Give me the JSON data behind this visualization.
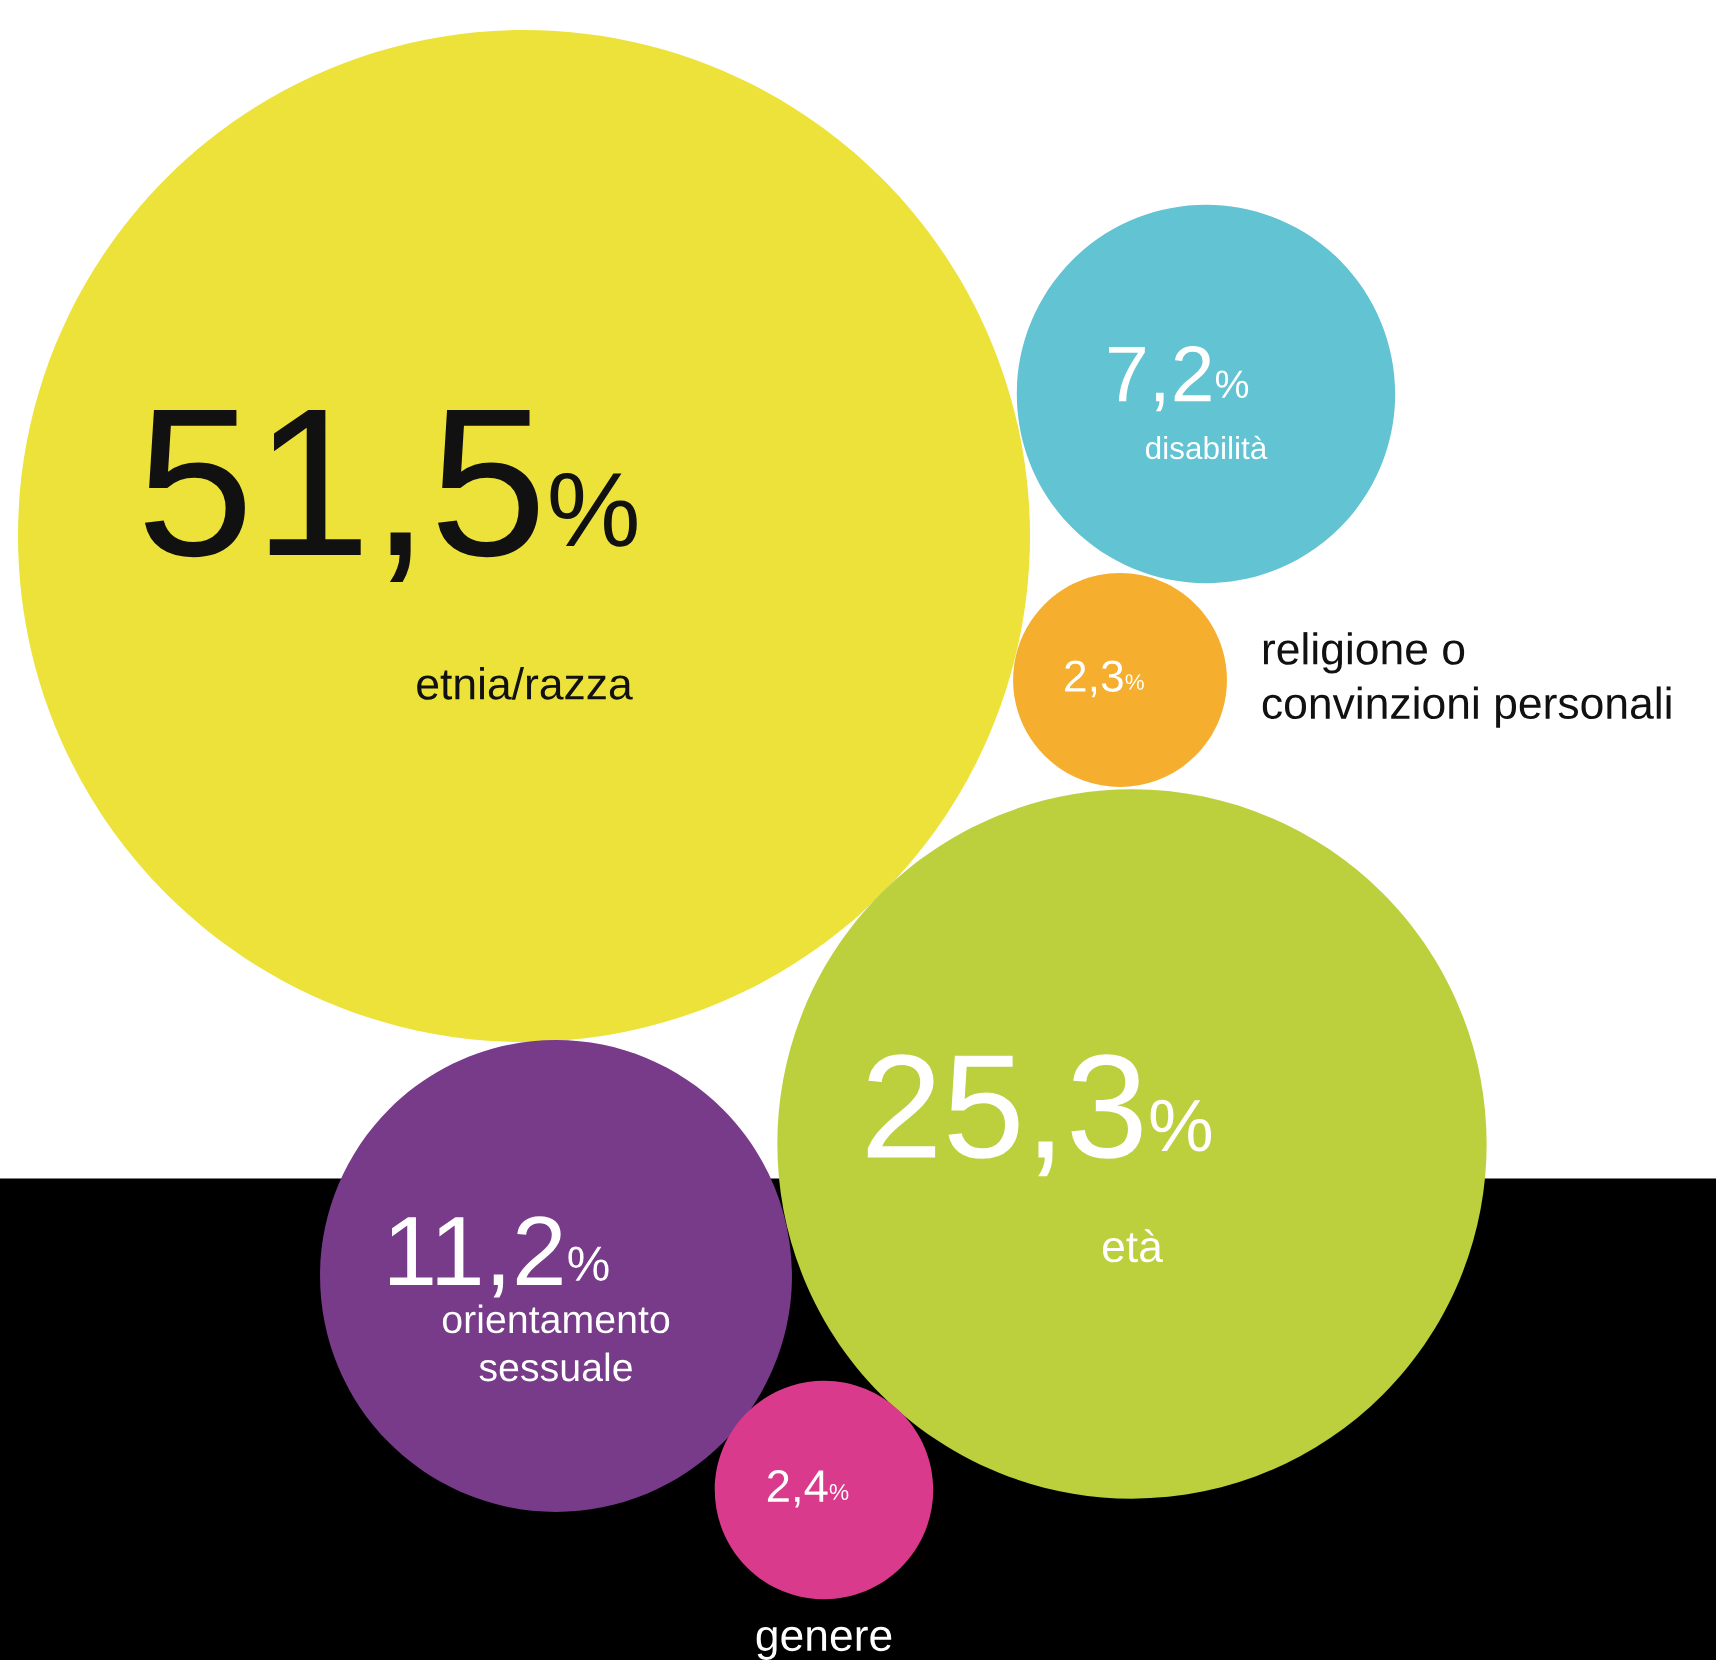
{
  "chart_data": {
    "type": "other",
    "categories": [
      "etnia/razza",
      "disabilità",
      "religione o\nconvinzioni personali",
      "età",
      "orientamento\nsessuale",
      "genere"
    ],
    "values": [
      51.5,
      7.2,
      2.3,
      25.3,
      11.2,
      2.4
    ],
    "value_labels": [
      "51,5%",
      "7,2%",
      "2,3%",
      "25,3%",
      "11,2%",
      "2,4%"
    ],
    "colors": [
      "#ece23a",
      "#62c3d3",
      "#f5ae2e",
      "#bccf3d",
      "#773b8a",
      "#d93a8b"
    ]
  }
}
